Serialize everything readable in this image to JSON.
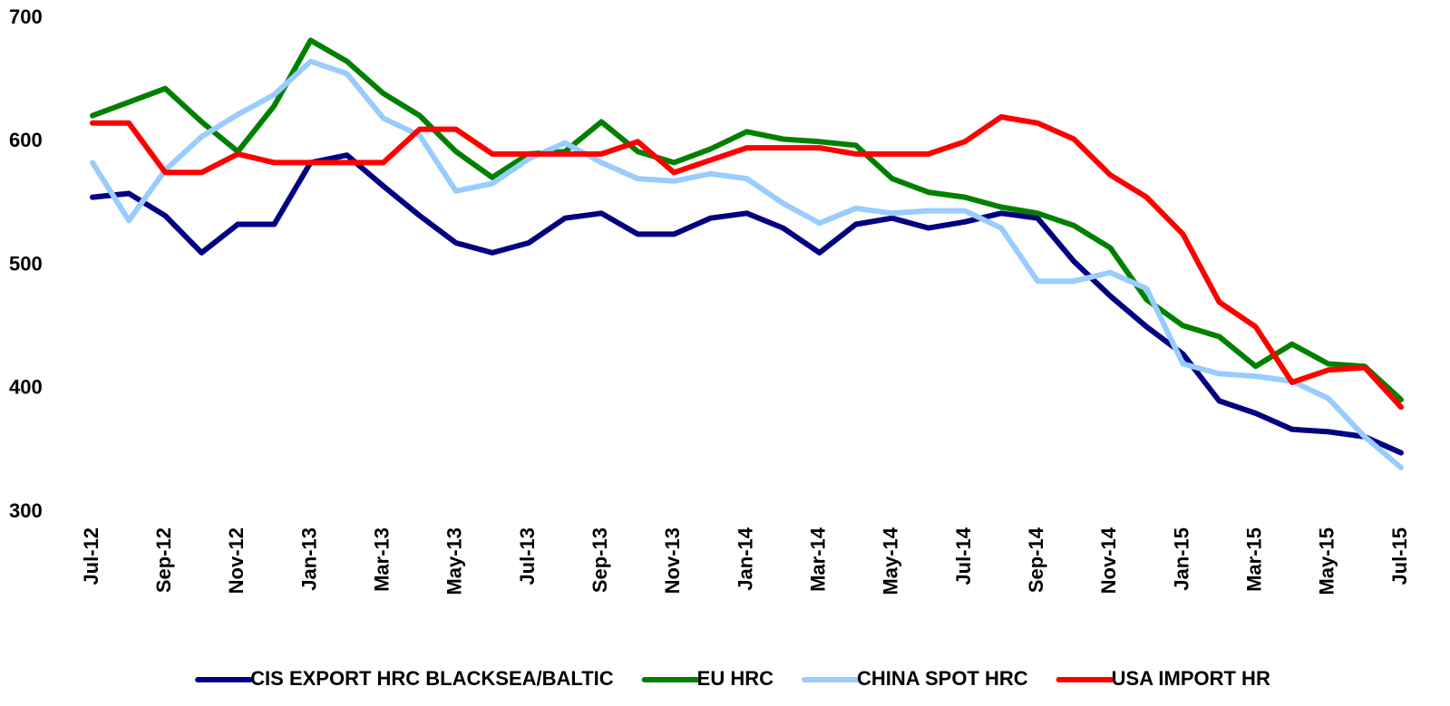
{
  "chart_data": {
    "type": "line",
    "categories": [
      "Jul-12",
      null,
      "Sep-12",
      null,
      "Nov-12",
      null,
      "Jan-13",
      null,
      "Mar-13",
      null,
      "May-13",
      null,
      "Jul-13",
      null,
      "Sep-13",
      null,
      "Nov-13",
      null,
      "Jan-14",
      null,
      "Mar-14",
      null,
      "May-14",
      null,
      "Jul-14",
      null,
      "Sep-14",
      null,
      "Nov-14",
      null,
      "Jan-15",
      null,
      "Mar-15",
      null,
      "May-15",
      null,
      "Jul-15"
    ],
    "series": [
      {
        "name": "CIS EXPORT HRC BLACKSEA/BALTIC",
        "color": "#000080",
        "values": [
          555,
          558,
          540,
          510,
          533,
          533,
          583,
          589,
          564,
          540,
          518,
          510,
          518,
          538,
          542,
          525,
          525,
          538,
          542,
          530,
          510,
          533,
          538,
          530,
          535,
          542,
          538,
          503,
          475,
          450,
          428,
          390,
          380,
          367,
          365,
          361,
          348
        ]
      },
      {
        "name": "EU HRC",
        "color": "#008000",
        "values": [
          621,
          632,
          643,
          616,
          592,
          629,
          682,
          665,
          639,
          621,
          592,
          571,
          590,
          592,
          616,
          592,
          583,
          594,
          608,
          602,
          600,
          597,
          570,
          559,
          555,
          547,
          542,
          532,
          514,
          472,
          451,
          442,
          418,
          436,
          420,
          418,
          391
        ]
      },
      {
        "name": "CHINA SPOT HRC",
        "color": "#99ccff",
        "values": [
          583,
          536,
          577,
          604,
          622,
          638,
          665,
          655,
          619,
          605,
          560,
          566,
          586,
          599,
          583,
          570,
          568,
          574,
          570,
          550,
          534,
          546,
          542,
          544,
          544,
          530,
          487,
          487,
          494,
          481,
          420,
          412,
          410,
          406,
          392,
          361,
          336
        ]
      },
      {
        "name": "USA IMPORT HR",
        "color": "#ff0000",
        "values": [
          615,
          615,
          575,
          575,
          590,
          583,
          583,
          583,
          583,
          610,
          610,
          590,
          590,
          590,
          590,
          600,
          575,
          585,
          595,
          595,
          595,
          590,
          590,
          590,
          600,
          620,
          615,
          602,
          573,
          555,
          525,
          470,
          450,
          405,
          415,
          417,
          385
        ]
      }
    ],
    "ylim": [
      300,
      700
    ],
    "yticks": [
      300,
      400,
      500,
      600,
      700
    ],
    "grid": false,
    "legend": "bottom"
  }
}
